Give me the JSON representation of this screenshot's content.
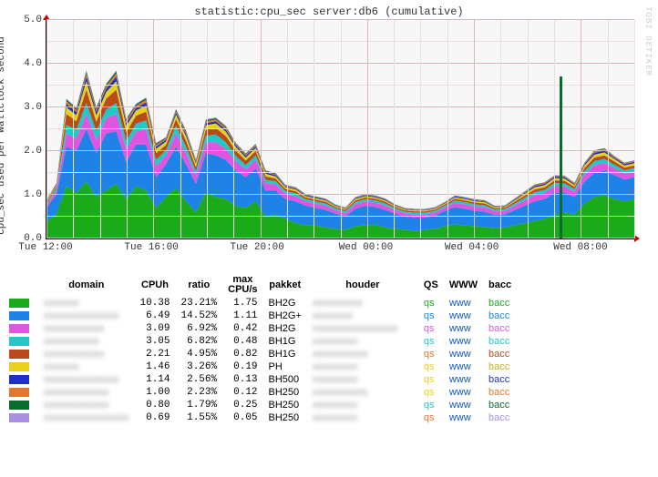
{
  "chart": {
    "title": "statistic:cpu_sec    server:db6 (cumulative)",
    "ylabel": "cpu_sec used per wallclock second",
    "watermark": "RRDTOOL / TOBI OETIKER",
    "background_color": "#f7f7f7",
    "grid_major_color": "#d9b8b8",
    "grid_minor_color": "#eedddd",
    "ymin": 0.0,
    "ymax": 5.0,
    "ytick_step": 1.0,
    "series_colors": [
      "#1aaa1a",
      "#1e82e6",
      "#e055e0",
      "#22c8c8",
      "#b84a1b",
      "#e6d21e",
      "#2030c0",
      "#e07830",
      "#0a6b2f",
      "#a890e0"
    ],
    "xticks": [
      {
        "pos": 0.0,
        "label": "Tue 12:00"
      },
      {
        "pos": 0.18,
        "label": "Tue 16:00"
      },
      {
        "pos": 0.36,
        "label": "Tue 20:00"
      },
      {
        "pos": 0.545,
        "label": "Wed 00:00"
      },
      {
        "pos": 0.725,
        "label": "Wed 04:00"
      },
      {
        "pos": 0.91,
        "label": "Wed 08:00"
      }
    ],
    "series": [
      [
        0.4,
        0.55,
        1.2,
        1.05,
        1.3,
        0.95,
        1.1,
        1.25,
        0.9,
        1.2,
        1.1,
        0.7,
        0.95,
        1.15,
        0.85,
        0.6,
        1.05,
        0.95,
        0.9,
        0.75,
        0.7,
        0.85,
        0.5,
        0.55,
        0.45,
        0.35,
        0.3,
        0.3,
        0.25,
        0.22,
        0.2,
        0.28,
        0.3,
        0.32,
        0.25,
        0.22,
        0.2,
        0.18,
        0.2,
        0.22,
        0.28,
        0.32,
        0.3,
        0.28,
        0.26,
        0.24,
        0.25,
        0.3,
        0.35,
        0.4,
        0.45,
        0.55,
        0.6,
        0.55,
        0.8,
        0.95,
        1.0,
        0.9,
        0.85,
        0.9
      ],
      [
        0.3,
        0.45,
        0.9,
        0.95,
        1.2,
        1.0,
        1.3,
        1.2,
        0.85,
        0.95,
        1.05,
        0.7,
        0.75,
        0.95,
        0.85,
        0.65,
        0.9,
        0.95,
        0.9,
        0.8,
        0.7,
        0.75,
        0.6,
        0.55,
        0.45,
        0.5,
        0.45,
        0.4,
        0.4,
        0.35,
        0.3,
        0.4,
        0.45,
        0.4,
        0.4,
        0.35,
        0.3,
        0.3,
        0.28,
        0.3,
        0.35,
        0.4,
        0.38,
        0.35,
        0.35,
        0.3,
        0.3,
        0.35,
        0.4,
        0.45,
        0.45,
        0.5,
        0.45,
        0.4,
        0.5,
        0.55,
        0.55,
        0.55,
        0.5,
        0.5
      ],
      [
        0.05,
        0.1,
        0.3,
        0.28,
        0.35,
        0.3,
        0.35,
        0.4,
        0.3,
        0.3,
        0.35,
        0.25,
        0.2,
        0.3,
        0.25,
        0.18,
        0.25,
        0.3,
        0.25,
        0.22,
        0.18,
        0.2,
        0.16,
        0.14,
        0.12,
        0.12,
        0.1,
        0.1,
        0.1,
        0.08,
        0.08,
        0.1,
        0.1,
        0.1,
        0.1,
        0.08,
        0.07,
        0.07,
        0.07,
        0.07,
        0.08,
        0.1,
        0.1,
        0.1,
        0.1,
        0.08,
        0.08,
        0.1,
        0.12,
        0.14,
        0.14,
        0.15,
        0.14,
        0.12,
        0.16,
        0.18,
        0.18,
        0.16,
        0.14,
        0.14
      ],
      [
        0.04,
        0.05,
        0.2,
        0.2,
        0.25,
        0.2,
        0.2,
        0.25,
        0.18,
        0.18,
        0.2,
        0.15,
        0.12,
        0.18,
        0.15,
        0.1,
        0.15,
        0.18,
        0.15,
        0.12,
        0.1,
        0.1,
        0.08,
        0.07,
        0.06,
        0.06,
        0.05,
        0.05,
        0.05,
        0.04,
        0.04,
        0.05,
        0.05,
        0.05,
        0.05,
        0.04,
        0.04,
        0.04,
        0.04,
        0.04,
        0.04,
        0.05,
        0.05,
        0.05,
        0.05,
        0.04,
        0.04,
        0.05,
        0.06,
        0.07,
        0.07,
        0.07,
        0.07,
        0.06,
        0.08,
        0.09,
        0.09,
        0.08,
        0.07,
        0.07
      ],
      [
        0.03,
        0.04,
        0.25,
        0.2,
        0.3,
        0.22,
        0.25,
        0.3,
        0.2,
        0.18,
        0.2,
        0.15,
        0.12,
        0.15,
        0.14,
        0.1,
        0.14,
        0.15,
        0.14,
        0.12,
        0.1,
        0.1,
        0.08,
        0.06,
        0.05,
        0.05,
        0.04,
        0.04,
        0.04,
        0.03,
        0.03,
        0.04,
        0.04,
        0.04,
        0.04,
        0.03,
        0.03,
        0.03,
        0.03,
        0.03,
        0.03,
        0.04,
        0.04,
        0.04,
        0.04,
        0.03,
        0.03,
        0.04,
        0.05,
        0.06,
        0.06,
        0.06,
        0.06,
        0.05,
        0.07,
        0.08,
        0.08,
        0.07,
        0.06,
        0.06
      ],
      [
        0.02,
        0.03,
        0.15,
        0.14,
        0.2,
        0.15,
        0.15,
        0.2,
        0.14,
        0.12,
        0.14,
        0.1,
        0.08,
        0.1,
        0.1,
        0.08,
        0.1,
        0.1,
        0.1,
        0.08,
        0.07,
        0.07,
        0.06,
        0.05,
        0.04,
        0.04,
        0.03,
        0.03,
        0.03,
        0.02,
        0.02,
        0.03,
        0.03,
        0.03,
        0.03,
        0.02,
        0.02,
        0.02,
        0.02,
        0.02,
        0.02,
        0.03,
        0.03,
        0.03,
        0.03,
        0.02,
        0.02,
        0.03,
        0.04,
        0.05,
        0.05,
        0.05,
        0.05,
        0.04,
        0.06,
        0.07,
        0.07,
        0.06,
        0.05,
        0.05
      ],
      [
        0.01,
        0.02,
        0.08,
        0.07,
        0.1,
        0.08,
        0.08,
        0.1,
        0.07,
        0.06,
        0.07,
        0.05,
        0.04,
        0.05,
        0.05,
        0.04,
        0.05,
        0.05,
        0.05,
        0.04,
        0.04,
        0.04,
        0.03,
        0.03,
        0.02,
        0.02,
        0.02,
        0.02,
        0.02,
        0.01,
        0.01,
        0.02,
        0.02,
        0.02,
        0.02,
        0.01,
        0.01,
        0.01,
        0.01,
        0.01,
        0.01,
        0.02,
        0.02,
        0.02,
        0.02,
        0.01,
        0.01,
        0.02,
        0.02,
        0.03,
        0.03,
        0.03,
        0.03,
        0.02,
        0.03,
        0.04,
        0.04,
        0.03,
        0.03,
        0.03
      ],
      [
        0.01,
        0.01,
        0.06,
        0.05,
        0.07,
        0.05,
        0.06,
        0.07,
        0.05,
        0.05,
        0.06,
        0.04,
        0.03,
        0.04,
        0.04,
        0.03,
        0.04,
        0.04,
        0.04,
        0.03,
        0.03,
        0.03,
        0.02,
        0.02,
        0.02,
        0.02,
        0.01,
        0.01,
        0.01,
        0.01,
        0.01,
        0.01,
        0.01,
        0.01,
        0.01,
        0.01,
        0.01,
        0.01,
        0.01,
        0.01,
        0.01,
        0.01,
        0.01,
        0.01,
        0.01,
        0.01,
        0.01,
        0.01,
        0.02,
        0.02,
        0.02,
        0.02,
        0.02,
        0.02,
        0.02,
        0.03,
        0.03,
        0.02,
        0.02,
        0.02
      ],
      [
        0.01,
        0.01,
        0.04,
        0.04,
        0.05,
        0.04,
        0.04,
        0.05,
        0.04,
        0.03,
        0.04,
        0.03,
        0.02,
        0.03,
        0.03,
        0.02,
        0.03,
        0.03,
        0.03,
        0.02,
        0.02,
        0.02,
        0.02,
        0.02,
        0.01,
        0.01,
        0.01,
        0.01,
        0.01,
        0.01,
        0.01,
        0.01,
        0.01,
        0.01,
        0.01,
        0.01,
        0.01,
        0.01,
        0.01,
        0.01,
        0.01,
        0.01,
        0.01,
        0.01,
        0.01,
        0.01,
        0.01,
        0.01,
        0.01,
        0.01,
        0.01,
        0.01,
        0.01,
        0.01,
        0.01,
        0.02,
        0.02,
        0.01,
        0.01,
        0.01
      ],
      [
        0.01,
        0.01,
        0.02,
        0.02,
        0.03,
        0.02,
        0.02,
        0.03,
        0.02,
        0.02,
        0.02,
        0.02,
        0.01,
        0.02,
        0.02,
        0.01,
        0.02,
        0.02,
        0.02,
        0.01,
        0.01,
        0.01,
        0.01,
        0.01,
        0.01,
        0.01,
        0.01,
        0.01,
        0.01,
        0.01,
        0.01,
        0.01,
        0.01,
        0.01,
        0.01,
        0.01,
        0.01,
        0.01,
        0.01,
        0.01,
        0.01,
        0.01,
        0.01,
        0.01,
        0.01,
        0.01,
        0.01,
        0.01,
        0.01,
        0.01,
        0.01,
        0.01,
        0.01,
        0.01,
        0.01,
        0.01,
        0.01,
        0.01,
        0.01,
        0.01
      ]
    ],
    "spike": {
      "x": 0.875,
      "height": 3.7
    }
  },
  "table": {
    "headers": [
      "domain",
      "CPUh",
      "ratio",
      "max CPU/s",
      "pakket",
      "houder",
      "QS",
      "WWW",
      "bacc"
    ],
    "qs_label": "qs",
    "www_label": "www",
    "bacc_label": "bacc",
    "rows": [
      {
        "color": "#1aaa1a",
        "domain": "xxxxxxx",
        "cpuh": "10.38",
        "ratio": "23.21%",
        "max": "1.75",
        "pakket": "BH2G",
        "houder": "xxxxxxxxxx",
        "qs_color": "#1aaa1a",
        "bacc_color": "#1aaa1a"
      },
      {
        "color": "#1e82e6",
        "domain": "xxxxxxxxxxxxxxx",
        "cpuh": "6.49",
        "ratio": "14.52%",
        "max": "1.11",
        "pakket": "BH2G+",
        "houder": "xxxxxxxx",
        "qs_color": "#1e82e6",
        "bacc_color": "#1e82e6"
      },
      {
        "color": "#e055e0",
        "domain": "xxxxxxxxxxxx",
        "cpuh": "3.09",
        "ratio": "6.92%",
        "max": "0.42",
        "pakket": "BH2G",
        "houder": "xxxxxxxxxxxxxxxxx",
        "qs_color": "#e055e0",
        "bacc_color": "#e055e0"
      },
      {
        "color": "#22c8c8",
        "domain": "xxxxxxxxxxx",
        "cpuh": "3.05",
        "ratio": "6.82%",
        "max": "0.48",
        "pakket": "BH1G",
        "houder": "xxxxxxxxx",
        "qs_color": "#22c8c8",
        "bacc_color": "#22c8c8"
      },
      {
        "color": "#b84a1b",
        "domain": "xxxxxxxxxxxx",
        "cpuh": "2.21",
        "ratio": "4.95%",
        "max": "0.82",
        "pakket": "BH1G",
        "houder": "xxxxxxxxxxx",
        "qs_color": "#e07830",
        "bacc_color": "#b84a1b"
      },
      {
        "color": "#e6d21e",
        "domain": "xxxxxxx",
        "cpuh": "1.46",
        "ratio": "3.26%",
        "max": "0.19",
        "pakket": "PH",
        "houder": "xxxxxxxxx",
        "qs_color": "#e6d21e",
        "bacc_color": "#c0b020"
      },
      {
        "color": "#2030c0",
        "domain": "xxxxxxxxxxxxxxx",
        "cpuh": "1.14",
        "ratio": "2.56%",
        "max": "0.13",
        "pakket": "BH500",
        "houder": "xxxxxxxxx",
        "qs_color": "#e6d21e",
        "bacc_color": "#2030c0"
      },
      {
        "color": "#e07830",
        "domain": "xxxxxxxxxxxxx",
        "cpuh": "1.00",
        "ratio": "2.23%",
        "max": "0.12",
        "pakket": "BH250",
        "houder": "xxxxxxxxxxx",
        "qs_color": "#e6d21e",
        "bacc_color": "#e07830"
      },
      {
        "color": "#0a6b2f",
        "domain": "xxxxxxxxxxxxx",
        "cpuh": "0.80",
        "ratio": "1.79%",
        "max": "0.25",
        "pakket": "BH250",
        "houder": "xxxxxxxxx",
        "qs_color": "#22c8c8",
        "bacc_color": "#0a6b2f"
      },
      {
        "color": "#a890e0",
        "domain": "xxxxxxxxxxxxxxxxx",
        "cpuh": "0.69",
        "ratio": "1.55%",
        "max": "0.05",
        "pakket": "BH250",
        "houder": "xxxxxxxxx",
        "qs_color": "#e07830",
        "bacc_color": "#a890e0"
      }
    ]
  }
}
